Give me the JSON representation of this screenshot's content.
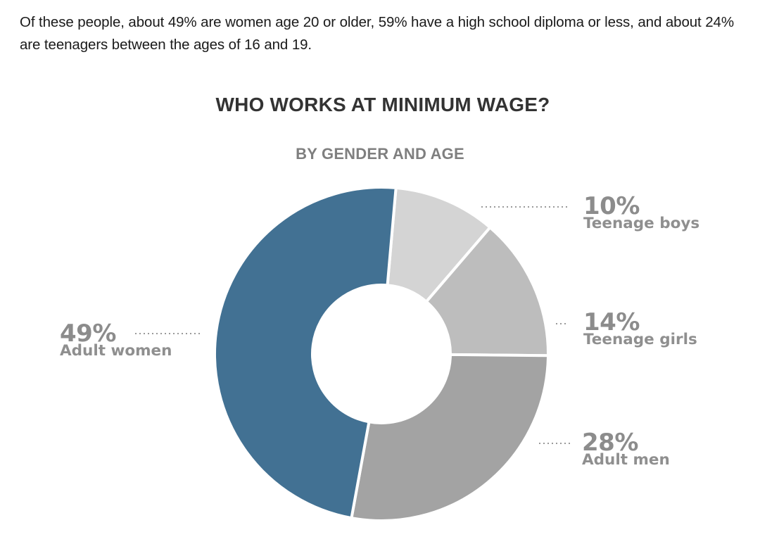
{
  "intro_text": "Of these people, about 49% are women age 20 or older, 59% have a high school diploma or less, and about 24% are teenagers between the ages of 16 and 19.",
  "chart_data": {
    "type": "pie",
    "style": "donut",
    "title": "WHO WORKS AT MINIMUM WAGE?",
    "subtitle": "BY GENDER AND AGE",
    "categories": [
      "Teenage boys",
      "Teenage girls",
      "Adult men",
      "Adult women"
    ],
    "values": [
      10,
      14,
      28,
      49
    ],
    "value_labels": [
      "10%",
      "14%",
      "28%",
      "49%"
    ],
    "colors": [
      "#d4d4d4",
      "#bdbdbd",
      "#a3a3a3",
      "#427193"
    ],
    "start_angle_deg": 5,
    "direction": "clockwise",
    "legend": "direct-labels"
  }
}
